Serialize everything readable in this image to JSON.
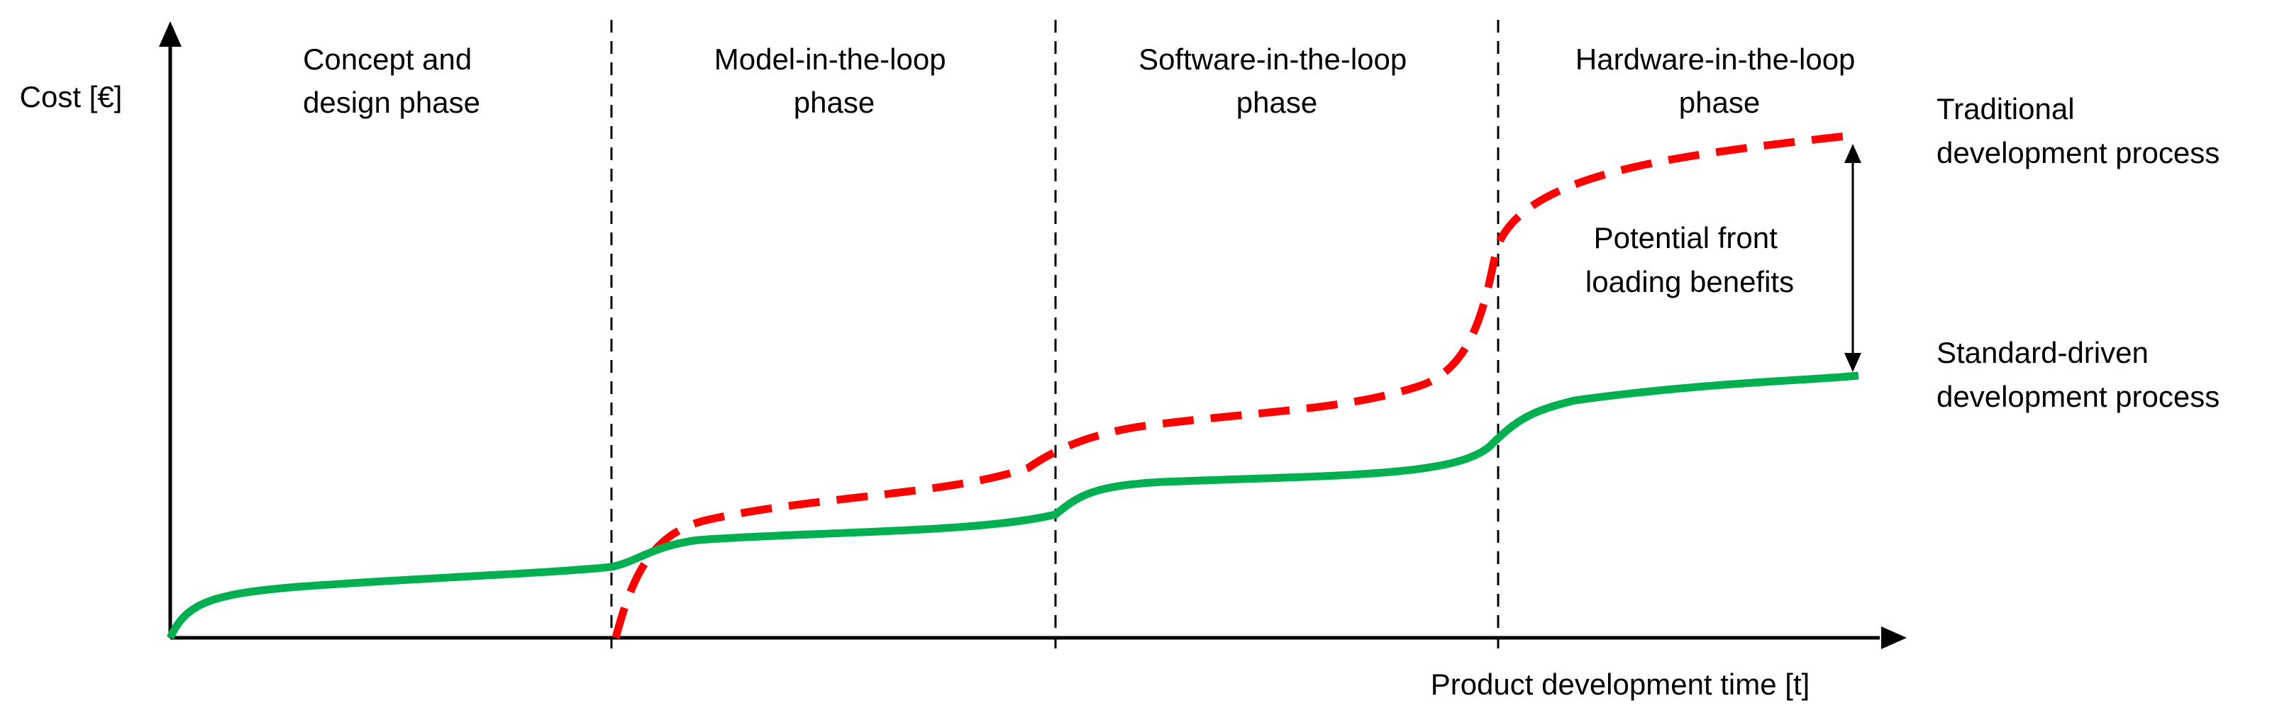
{
  "axes": {
    "y_label": "Cost [€]",
    "x_label": "Product development time [t]"
  },
  "phases": [
    {
      "lines": [
        "Concept and",
        "design phase"
      ]
    },
    {
      "lines": [
        "Model-in-the-loop",
        "phase"
      ]
    },
    {
      "lines": [
        "Software-in-the-loop",
        "phase"
      ]
    },
    {
      "lines": [
        "Hardware-in-the-loop",
        "phase"
      ]
    }
  ],
  "series": {
    "traditional": {
      "lines": [
        "Traditional",
        "development process"
      ],
      "color": "#ff0000",
      "style": "dashed"
    },
    "standard": {
      "lines": [
        "Standard-driven",
        "development process"
      ],
      "color": "#00b050",
      "style": "solid"
    }
  },
  "annotation": {
    "lines": [
      "Potential front",
      "loading benefits"
    ]
  }
}
